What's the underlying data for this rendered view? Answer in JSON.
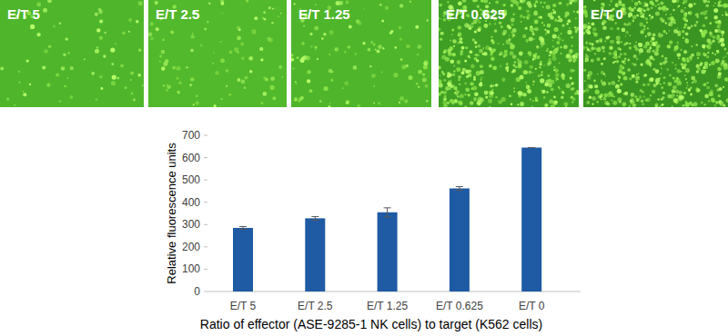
{
  "panels": {
    "labels": [
      "E/T 5",
      "E/T 2.5",
      "E/T 1.25",
      "E/T 0.625",
      "E/T 0"
    ]
  },
  "chart_data": {
    "type": "bar",
    "x_label": "Ratio of effector (ASE-9285-1 NK cells) to target (K562 cells)",
    "y_label": "Relative fluorescence units",
    "categories": [
      "E/T 5",
      "E/T 2.5",
      "E/T 1.25",
      "E/T 0.625",
      "E/T 0"
    ],
    "values": [
      285,
      328,
      355,
      462,
      645
    ],
    "errors": [
      6,
      8,
      20,
      8,
      0
    ],
    "color": "#1f5ba4",
    "ylim": [
      0,
      700
    ],
    "yticks": [
      0,
      100,
      200,
      300,
      400,
      500,
      600,
      700
    ],
    "grid": false
  }
}
